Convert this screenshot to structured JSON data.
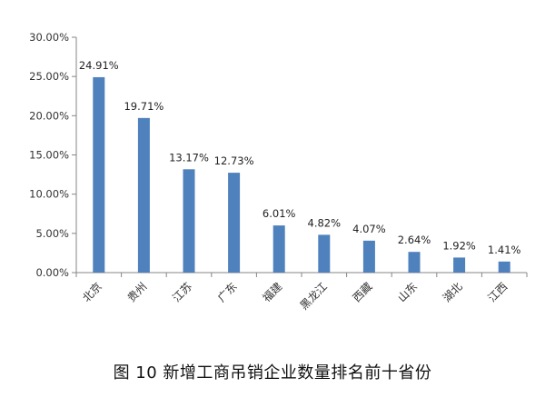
{
  "chart_data": {
    "type": "bar",
    "title": "",
    "xlabel": "",
    "ylabel": "",
    "categories": [
      "北京",
      "贵州",
      "江苏",
      "广东",
      "福建",
      "黑龙江",
      "西藏",
      "山东",
      "湖北",
      "江西"
    ],
    "values": [
      24.91,
      19.71,
      13.17,
      12.73,
      6.01,
      4.82,
      4.07,
      2.64,
      1.92,
      1.41
    ],
    "data_labels": [
      "24.91%",
      "19.71%",
      "13.17%",
      "12.73%",
      "6.01%",
      "4.82%",
      "4.07%",
      "2.64%",
      "1.92%",
      "1.41%"
    ],
    "ylim": [
      0,
      30
    ],
    "yticks": [
      0,
      5,
      10,
      15,
      20,
      25,
      30
    ],
    "ytick_labels": [
      "0.00%",
      "5.00%",
      "10.00%",
      "15.00%",
      "20.00%",
      "25.00%",
      "30.00%"
    ],
    "bar_color": "#4f81bd",
    "grid": false,
    "legend": "none"
  },
  "caption": "图 10  新增工商吊销企业数量排名前十省份"
}
